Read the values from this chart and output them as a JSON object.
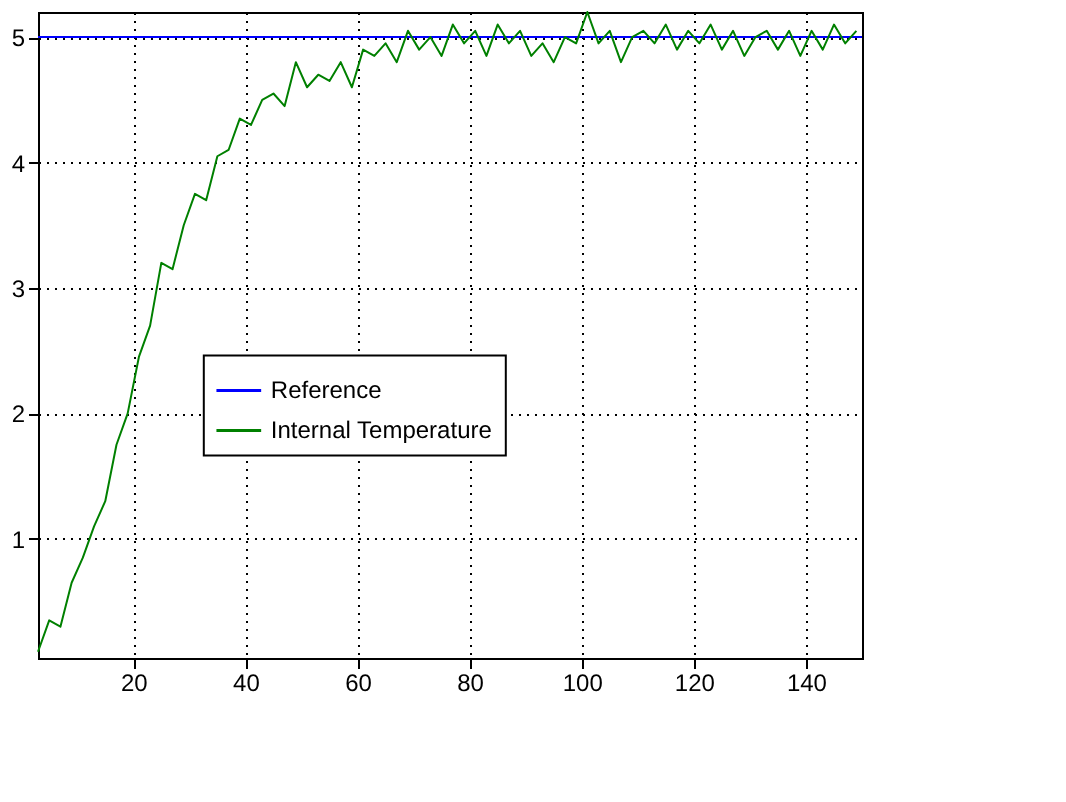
{
  "chart_data": {
    "type": "line",
    "xlim": [
      3,
      150
    ],
    "ylim": [
      0.05,
      5.2
    ],
    "xticks": [
      20,
      40,
      60,
      80,
      100,
      120,
      140
    ],
    "yticks": [
      1,
      2,
      3,
      4,
      5
    ],
    "grid": true,
    "legend": "center",
    "line_style": "solid",
    "marker": "none",
    "series": [
      {
        "name": "Reference",
        "color": "#0000ff",
        "x": [
          3,
          150
        ],
        "values": [
          5,
          5
        ]
      },
      {
        "name": "Internal Temperature",
        "color": "#008000",
        "x": [
          3,
          5,
          7,
          9,
          11,
          13,
          15,
          17,
          19,
          21,
          23,
          25,
          27,
          29,
          31,
          33,
          35,
          37,
          39,
          41,
          43,
          45,
          47,
          49,
          51,
          53,
          55,
          57,
          59,
          61,
          63,
          65,
          67,
          69,
          71,
          73,
          75,
          77,
          79,
          81,
          83,
          85,
          87,
          89,
          91,
          93,
          95,
          97,
          99,
          101,
          103,
          105,
          107,
          109,
          111,
          113,
          115,
          117,
          119,
          121,
          123,
          125,
          127,
          129,
          131,
          133,
          135,
          137,
          139,
          141,
          143,
          145,
          147,
          149
        ],
        "values": [
          0.1,
          0.35,
          0.3,
          0.65,
          0.85,
          1.1,
          1.3,
          1.75,
          2.0,
          2.45,
          2.7,
          3.2,
          3.15,
          3.5,
          3.75,
          3.7,
          4.05,
          4.1,
          4.35,
          4.3,
          4.5,
          4.55,
          4.45,
          4.8,
          4.6,
          4.7,
          4.65,
          4.8,
          4.6,
          4.9,
          4.85,
          4.95,
          4.8,
          5.05,
          4.9,
          5.0,
          4.85,
          5.1,
          4.95,
          5.05,
          4.85,
          5.1,
          4.95,
          5.05,
          4.85,
          4.95,
          4.8,
          5.0,
          4.95,
          5.2,
          4.95,
          5.05,
          4.8,
          5.0,
          5.05,
          4.95,
          5.1,
          4.9,
          5.05,
          4.95,
          5.1,
          4.9,
          5.05,
          4.85,
          5.0,
          5.05,
          4.9,
          5.05,
          4.85,
          5.05,
          4.9,
          5.1,
          4.95,
          5.05
        ]
      }
    ]
  }
}
